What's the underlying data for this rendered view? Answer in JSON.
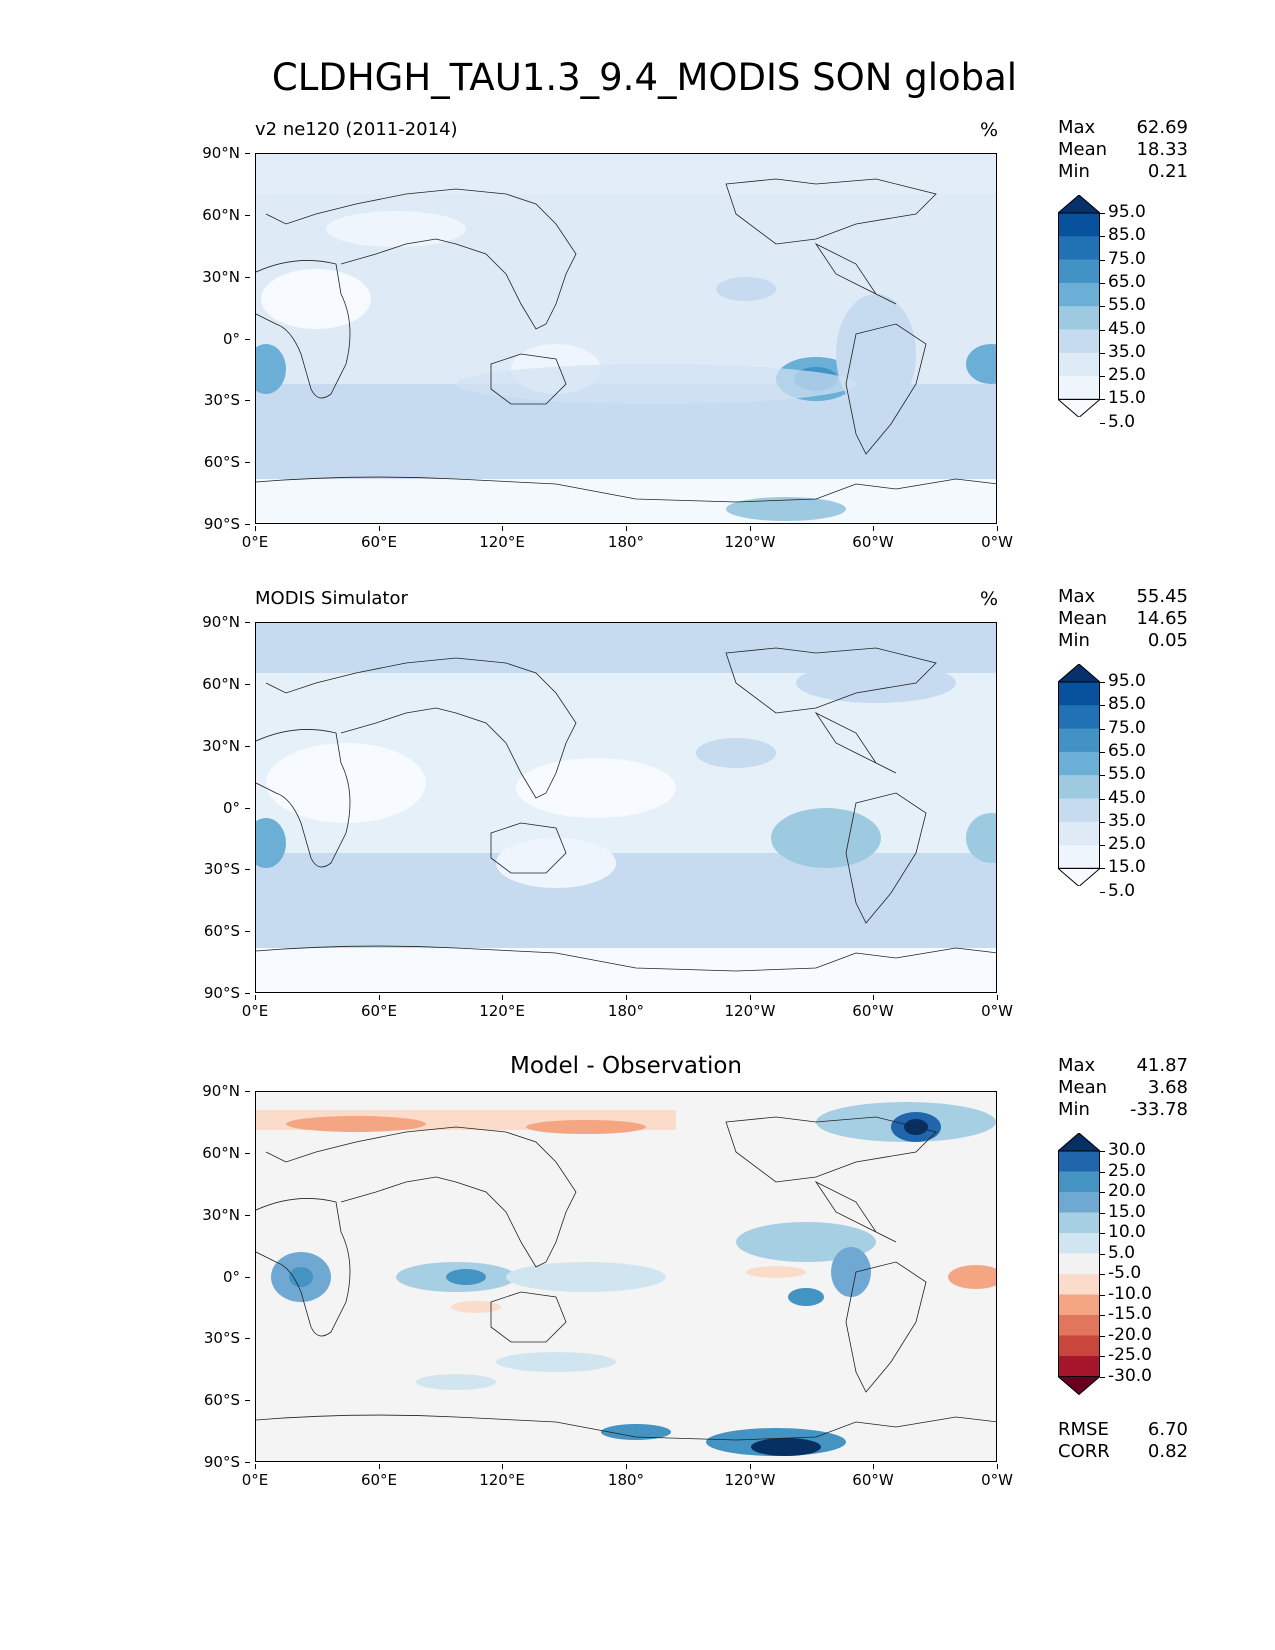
{
  "title": "CLDHGH_TAU1.3_9.4_MODIS SON global",
  "chart_data": [
    {
      "type": "heatmap",
      "title": "v2 ne120 (2011-2014)",
      "units": "%",
      "stats": {
        "max_label": "Max",
        "max": "62.69",
        "mean_label": "Mean",
        "mean": "18.33",
        "min_label": "Min",
        "min": "0.21"
      },
      "colorbar": {
        "labels": [
          "95.0",
          "85.0",
          "75.0",
          "65.0",
          "55.0",
          "45.0",
          "35.0",
          "25.0",
          "15.0",
          "5.0"
        ],
        "colors": [
          "#08306b",
          "#08519c",
          "#2171b5",
          "#4292c6",
          "#6baed6",
          "#9ecae1",
          "#c6dbef",
          "#deebf7",
          "#eef5fc",
          "#f7fbff"
        ]
      },
      "x_ticks": [
        "0°E",
        "60°E",
        "120°E",
        "180°",
        "120°W",
        "60°W",
        "0°W"
      ],
      "y_ticks": [
        "90°N",
        "60°N",
        "30°N",
        "0°",
        "30°S",
        "60°S",
        "90°S"
      ]
    },
    {
      "type": "heatmap",
      "title": "MODIS Simulator",
      "units": "%",
      "stats": {
        "max_label": "Max",
        "max": "55.45",
        "mean_label": "Mean",
        "mean": "14.65",
        "min_label": "Min",
        "min": "0.05"
      },
      "colorbar": {
        "labels": [
          "95.0",
          "85.0",
          "75.0",
          "65.0",
          "55.0",
          "45.0",
          "35.0",
          "25.0",
          "15.0",
          "5.0"
        ],
        "colors": [
          "#08306b",
          "#08519c",
          "#2171b5",
          "#4292c6",
          "#6baed6",
          "#9ecae1",
          "#c6dbef",
          "#deebf7",
          "#eef5fc",
          "#f7fbff"
        ]
      },
      "x_ticks": [
        "0°E",
        "60°E",
        "120°E",
        "180°",
        "120°W",
        "60°W",
        "0°W"
      ],
      "y_ticks": [
        "90°N",
        "60°N",
        "30°N",
        "0°",
        "30°S",
        "60°S",
        "90°S"
      ]
    },
    {
      "type": "heatmap",
      "title": "Model - Observation",
      "units": "",
      "stats": {
        "max_label": "Max",
        "max": "41.87",
        "mean_label": "Mean",
        "mean": "3.68",
        "min_label": "Min",
        "min": "-33.78"
      },
      "metrics": {
        "rmse_label": "RMSE",
        "rmse": "6.70",
        "corr_label": "CORR",
        "corr": "0.82"
      },
      "colorbar": {
        "labels": [
          "30.0",
          "25.0",
          "20.0",
          "15.0",
          "10.0",
          "5.0",
          "-5.0",
          "-10.0",
          "-15.0",
          "-20.0",
          "-25.0",
          "-30.0"
        ],
        "colors": [
          "#053061",
          "#2166ac",
          "#4393c3",
          "#6fa8d3",
          "#a7cfe4",
          "#d1e5f0",
          "#f2f2f2",
          "#fbdccb",
          "#f4a582",
          "#e0775d",
          "#c9463d",
          "#a5162b",
          "#67001f"
        ]
      },
      "x_ticks": [
        "0°E",
        "60°E",
        "120°E",
        "180°",
        "120°W",
        "60°W",
        "0°W"
      ],
      "y_ticks": [
        "90°N",
        "60°N",
        "30°N",
        "0°",
        "30°S",
        "60°S",
        "90°S"
      ]
    }
  ]
}
